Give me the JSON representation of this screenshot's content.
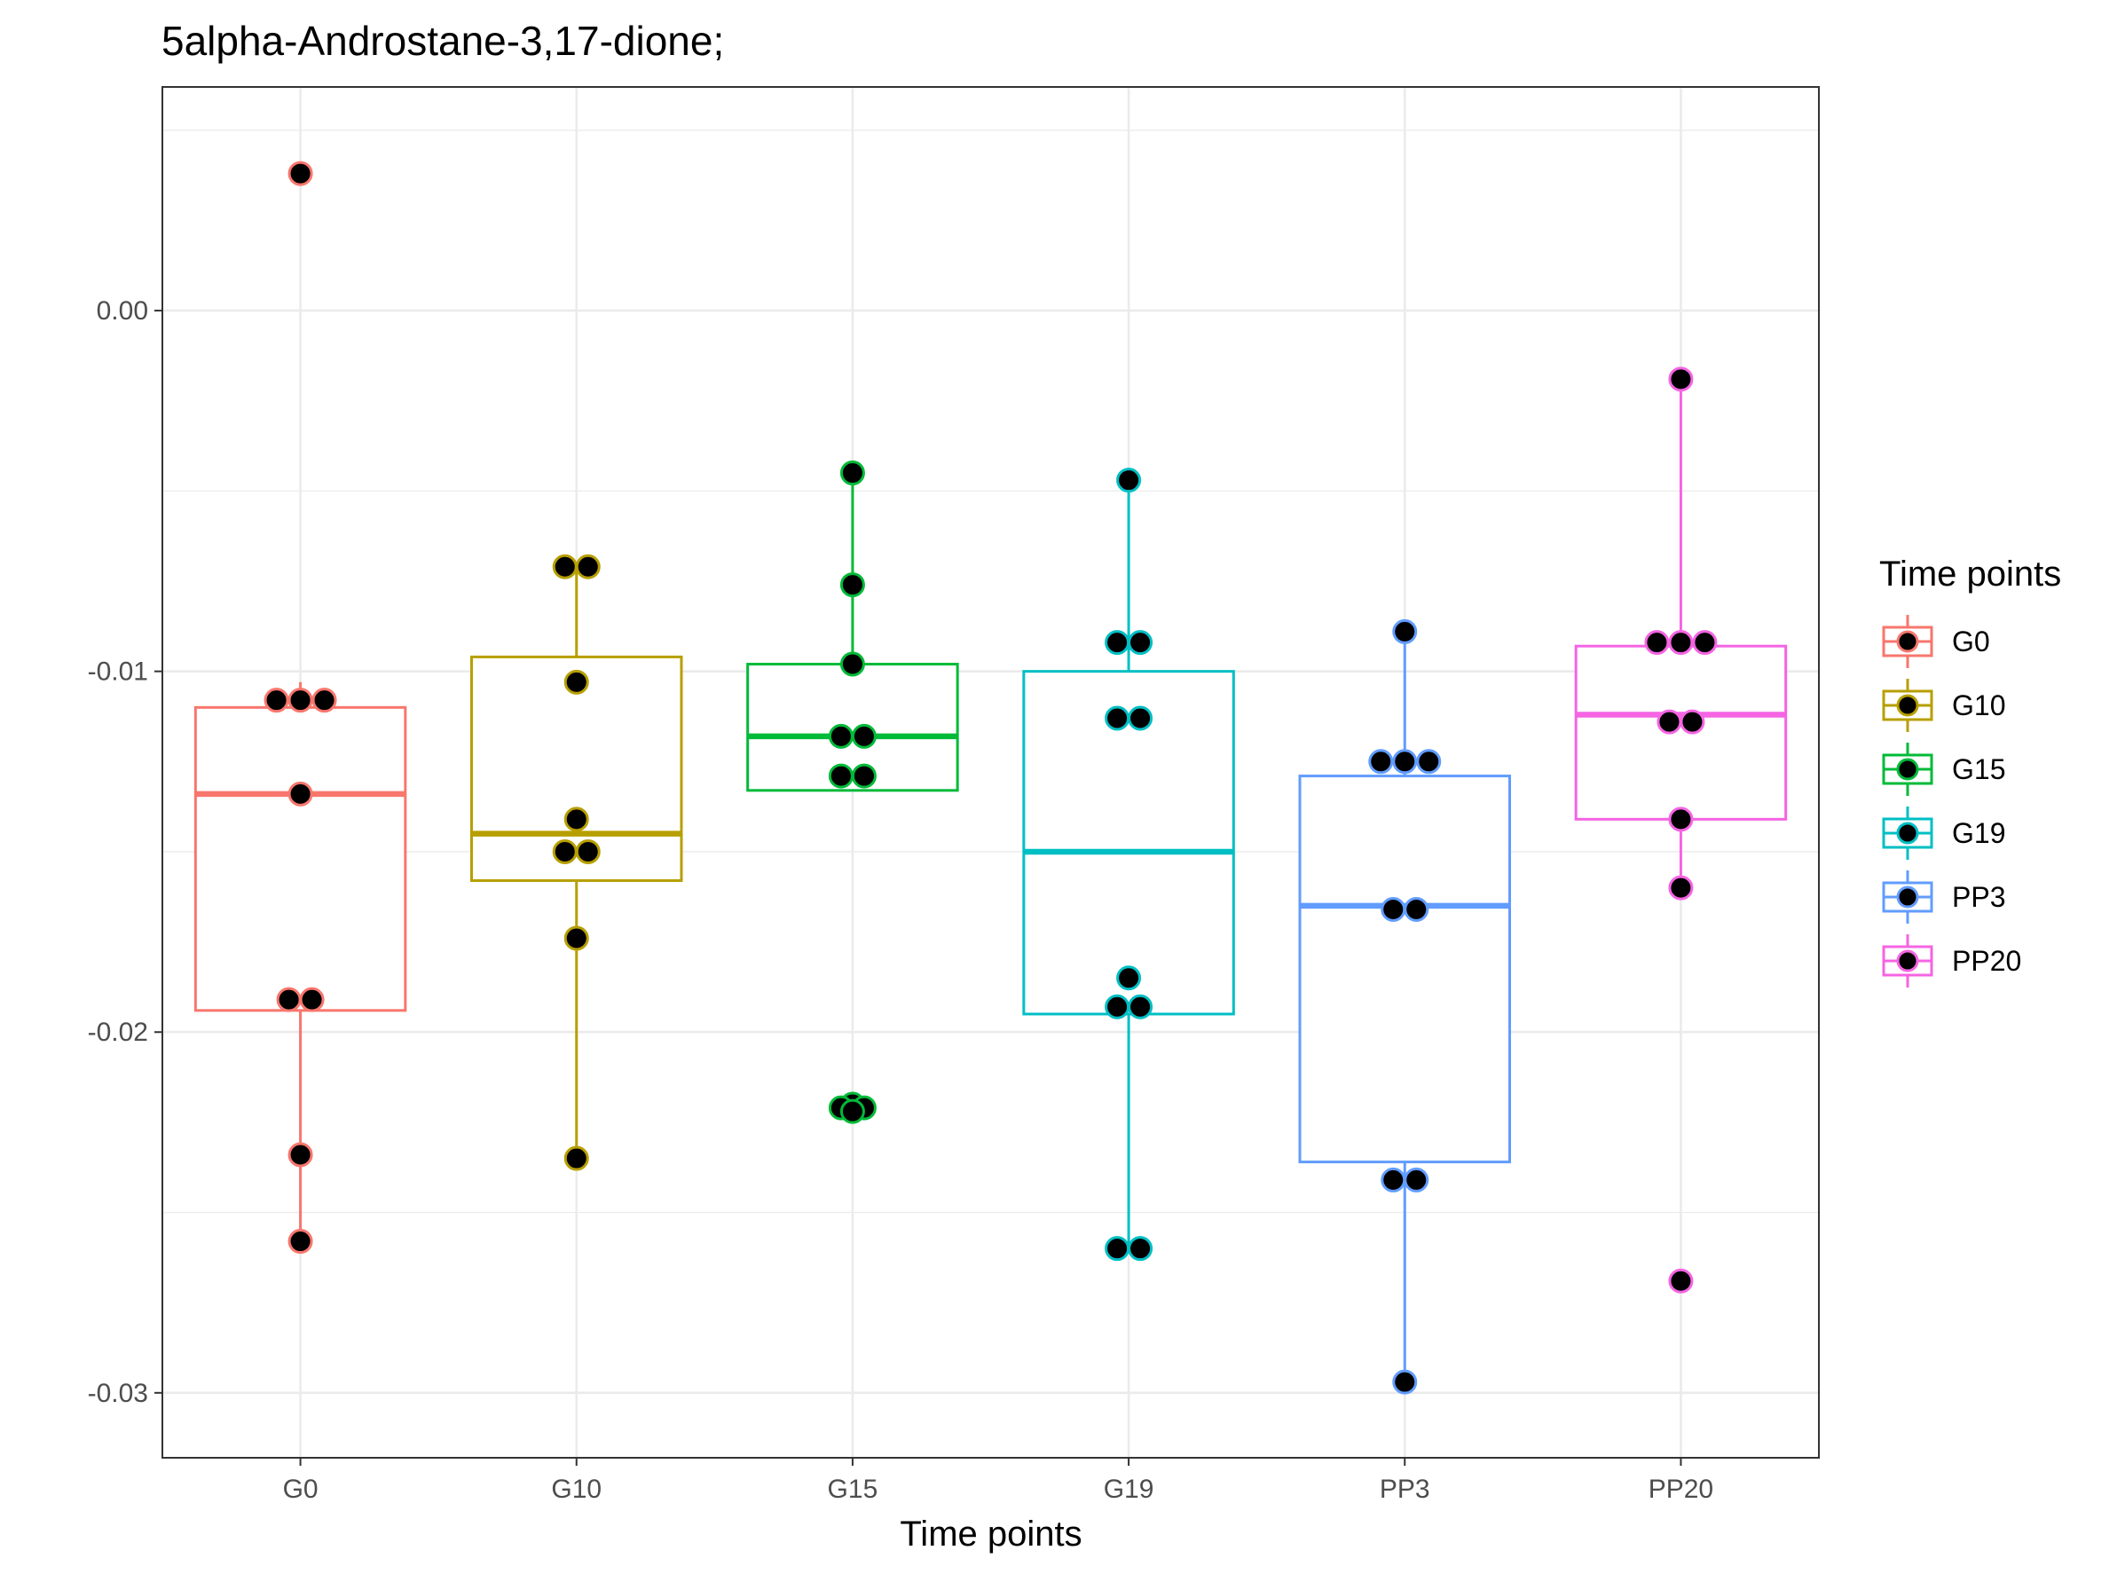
{
  "chart_data": {
    "type": "box",
    "title": "5alpha-Androstane-3,17-dione;",
    "xlabel": "Time points",
    "ylabel": "",
    "ylim": [
      -0.0318,
      0.0062
    ],
    "yticks": [
      0.0,
      -0.01,
      -0.02,
      -0.03
    ],
    "ytick_labels": [
      "0.00",
      "-0.01",
      "-0.02",
      "-0.03"
    ],
    "grid": true,
    "legend": {
      "title": "Time points",
      "placement": "right",
      "entries": [
        "G0",
        "G10",
        "G15",
        "G19",
        "PP3",
        "PP20"
      ]
    },
    "categories": [
      "G0",
      "G10",
      "G15",
      "G19",
      "PP3",
      "PP20"
    ],
    "series": [
      {
        "name": "G0",
        "color": "#F8766D",
        "box": {
          "lower_whisker": -0.0258,
          "q1": -0.0194,
          "median": -0.0134,
          "q3": -0.011,
          "upper_whisker": -0.0103
        },
        "points": [
          0.0038,
          -0.0108,
          -0.0108,
          -0.0108,
          -0.0134,
          -0.0191,
          -0.0191,
          -0.0234,
          -0.0258
        ]
      },
      {
        "name": "G10",
        "color": "#B79F00",
        "box": {
          "lower_whisker": -0.0235,
          "q1": -0.0158,
          "median": -0.0145,
          "q3": -0.0096,
          "upper_whisker": -0.0071
        },
        "points": [
          -0.0071,
          -0.0071,
          -0.0103,
          -0.0141,
          -0.015,
          -0.015,
          -0.0174,
          -0.0235
        ]
      },
      {
        "name": "G15",
        "color": "#00BA38",
        "box": {
          "lower_whisker": -0.0133,
          "q1": -0.0133,
          "median": -0.0118,
          "q3": -0.0098,
          "upper_whisker": -0.0045
        },
        "points": [
          -0.0045,
          -0.0076,
          -0.0098,
          -0.0118,
          -0.0118,
          -0.0129,
          -0.0129,
          -0.022,
          -0.0221,
          -0.0221,
          -0.0222
        ]
      },
      {
        "name": "G19",
        "color": "#00BFC4",
        "box": {
          "lower_whisker": -0.026,
          "q1": -0.0195,
          "median": -0.015,
          "q3": -0.01,
          "upper_whisker": -0.0047
        },
        "points": [
          -0.0047,
          -0.0092,
          -0.0092,
          -0.0113,
          -0.0113,
          -0.0185,
          -0.0193,
          -0.0193,
          -0.026,
          -0.026
        ]
      },
      {
        "name": "PP3",
        "color": "#619CFF",
        "box": {
          "lower_whisker": -0.0297,
          "q1": -0.0236,
          "median": -0.0165,
          "q3": -0.0129,
          "upper_whisker": -0.0089
        },
        "points": [
          -0.0089,
          -0.0125,
          -0.0125,
          -0.0125,
          -0.0166,
          -0.0166,
          -0.0241,
          -0.0241,
          -0.0297
        ]
      },
      {
        "name": "PP20",
        "color": "#F564E3",
        "box": {
          "lower_whisker": -0.016,
          "q1": -0.0141,
          "median": -0.0112,
          "q3": -0.0093,
          "upper_whisker": -0.0019
        },
        "points": [
          -0.0019,
          -0.0092,
          -0.0092,
          -0.0092,
          -0.0114,
          -0.0114,
          -0.0141,
          -0.016,
          -0.0269
        ]
      }
    ]
  }
}
